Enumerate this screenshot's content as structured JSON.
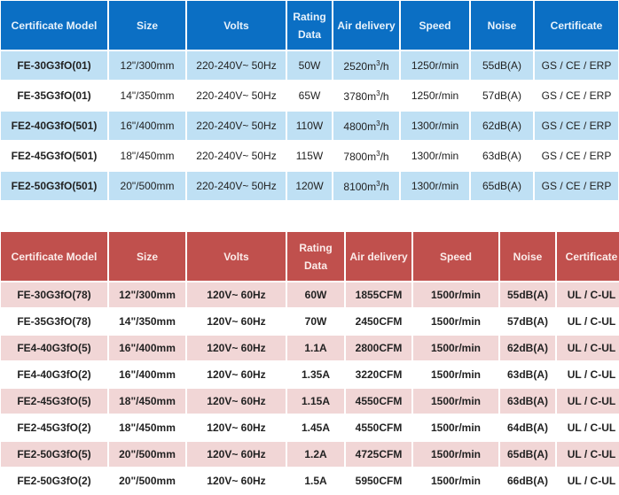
{
  "table1": {
    "headers": [
      "Certificate Model",
      "Size",
      "Volts",
      "Rating",
      "Data",
      "Air delivery",
      "Speed",
      "Noise",
      "Certificate"
    ],
    "rows": [
      {
        "model": "FE-30G3fO(01)",
        "size": "12\"/300mm",
        "volts": "220-240V~ 50Hz",
        "rating": "50W",
        "air": "2520m",
        "air_exp": "3",
        "air_unit": "/h",
        "speed": "1250r/min",
        "noise": "55dB(A)",
        "cert": "GS / CE / ERP"
      },
      {
        "model": "FE-35G3fO(01)",
        "size": "14\"/350mm",
        "volts": "220-240V~ 50Hz",
        "rating": "65W",
        "air": "3780m",
        "air_exp": "3",
        "air_unit": "/h",
        "speed": "1250r/min",
        "noise": "57dB(A)",
        "cert": "GS / CE / ERP"
      },
      {
        "model": "FE2-40G3fO(501)",
        "size": "16\"/400mm",
        "volts": "220-240V~ 50Hz",
        "rating": "110W",
        "air": "4800m",
        "air_exp": "3",
        "air_unit": "/h",
        "speed": "1300r/min",
        "noise": "62dB(A)",
        "cert": "GS / CE / ERP"
      },
      {
        "model": "FE2-45G3fO(501)",
        "size": "18\"/450mm",
        "volts": "220-240V~ 50Hz",
        "rating": "115W",
        "air": "7800m",
        "air_exp": "3",
        "air_unit": "/h",
        "speed": "1300r/min",
        "noise": "63dB(A)",
        "cert": "GS / CE / ERP"
      },
      {
        "model": "FE2-50G3fO(501)",
        "size": "20\"/500mm",
        "volts": "220-240V~ 50Hz",
        "rating": "120W",
        "air": "8100m",
        "air_exp": "3",
        "air_unit": "/h",
        "speed": "1300r/min",
        "noise": "65dB(A)",
        "cert": "GS / CE / ERP"
      }
    ]
  },
  "table2": {
    "headers": [
      "Certificate Model",
      "Size",
      "Volts",
      "Rating",
      "Data",
      "Air delivery",
      "Speed",
      "Noise",
      "Certificate"
    ],
    "rows": [
      {
        "model": "FE-30G3fO(78)",
        "size": "12\"/300mm",
        "volts": "120V~ 60Hz",
        "rating": "60W",
        "air": "1855CFM",
        "speed": "1500r/min",
        "noise": "55dB(A)",
        "cert": "UL / C-UL"
      },
      {
        "model": "FE-35G3fO(78)",
        "size": "14\"/350mm",
        "volts": "120V~ 60Hz",
        "rating": "70W",
        "air": "2450CFM",
        "speed": "1500r/min",
        "noise": "57dB(A)",
        "cert": "UL / C-UL"
      },
      {
        "model": "FE4-40G3fO(5)",
        "size": "16\"/400mm",
        "volts": "120V~ 60Hz",
        "rating": "1.1A",
        "air": "2800CFM",
        "speed": "1500r/min",
        "noise": "62dB(A)",
        "cert": "UL / C-UL"
      },
      {
        "model": "FE4-40G3fO(2)",
        "size": "16\"/400mm",
        "volts": "120V~ 60Hz",
        "rating": "1.35A",
        "air": "3220CFM",
        "speed": "1500r/min",
        "noise": "63dB(A)",
        "cert": "UL / C-UL"
      },
      {
        "model": "FE2-45G3fO(5)",
        "size": "18\"/450mm",
        "volts": "120V~ 60Hz",
        "rating": "1.15A",
        "air": "4550CFM",
        "speed": "1500r/min",
        "noise": "63dB(A)",
        "cert": "UL / C-UL"
      },
      {
        "model": "FE2-45G3fO(2)",
        "size": "18\"/450mm",
        "volts": "120V~ 60Hz",
        "rating": "1.45A",
        "air": "4550CFM",
        "speed": "1500r/min",
        "noise": "64dB(A)",
        "cert": "UL / C-UL"
      },
      {
        "model": "FE2-50G3fO(5)",
        "size": "20\"/500mm",
        "volts": "120V~ 60Hz",
        "rating": "1.2A",
        "air": "4725CFM",
        "speed": "1500r/min",
        "noise": "65dB(A)",
        "cert": "UL / C-UL"
      },
      {
        "model": "FE2-50G3fO(2)",
        "size": "20\"/500mm",
        "volts": "120V~ 60Hz",
        "rating": "1.5A",
        "air": "5950CFM",
        "speed": "1500r/min",
        "noise": "66dB(A)",
        "cert": "UL / C-UL"
      }
    ]
  },
  "colors": {
    "blue_header": "#0b6fc4",
    "blue_row": "#bfe0f4",
    "red_header": "#c0504d",
    "red_row": "#f1d6d6"
  }
}
